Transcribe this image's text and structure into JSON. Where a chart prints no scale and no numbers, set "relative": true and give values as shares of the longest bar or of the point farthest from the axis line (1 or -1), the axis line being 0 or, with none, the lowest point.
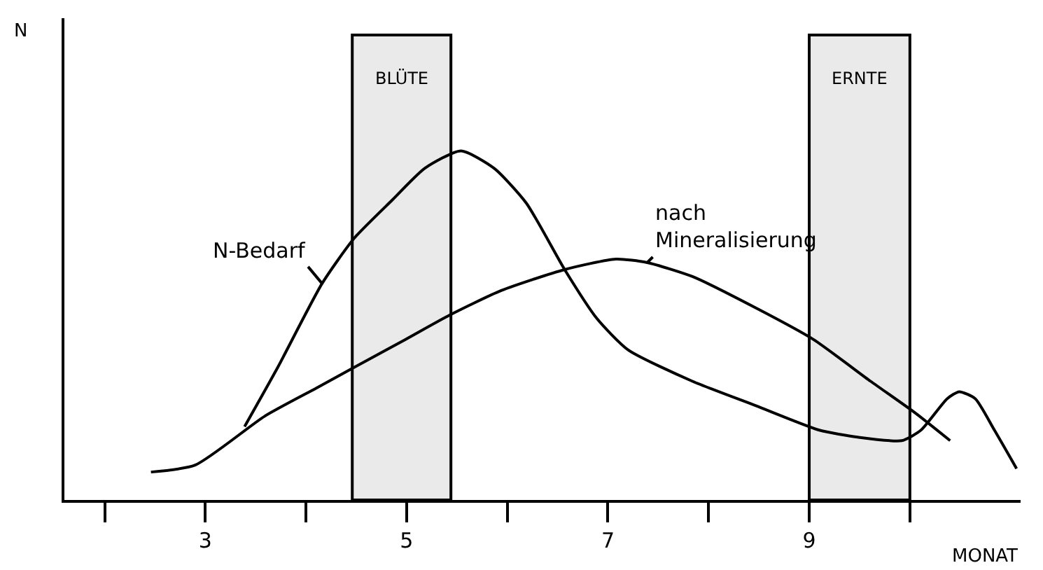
{
  "chart_data": {
    "type": "line",
    "relative": true,
    "xlabel": "MONAT",
    "annotations": [
      "N"
    ],
    "xlim": [
      1.6,
      11.1
    ],
    "xticks": [
      {
        "value": 2,
        "label": null
      },
      3,
      {
        "value": 4,
        "label": null
      },
      5,
      {
        "value": 6,
        "label": null
      },
      7,
      {
        "value": 8,
        "label": null
      },
      9,
      {
        "value": 10,
        "label": null
      }
    ],
    "legend": false,
    "marker": "none",
    "line_style": "solid",
    "series": [
      {
        "name": "N-Bedarf",
        "color": "#000000",
        "x": [
          3.39,
          3.72,
          4.16,
          4.48,
          4.86,
          5.18,
          5.54,
          5.87,
          6.19,
          6.57,
          6.89,
          7.2,
          7.84,
          8.47,
          9.1,
          9.48,
          9.92,
          10.11,
          10.37,
          10.49,
          10.65,
          10.84,
          11.06
        ],
        "values": [
          0.21,
          0.38,
          0.62,
          0.75,
          0.86,
          0.95,
          1.0,
          0.95,
          0.85,
          0.66,
          0.52,
          0.43,
          0.34,
          0.27,
          0.2,
          0.18,
          0.17,
          0.2,
          0.29,
          0.31,
          0.29,
          0.2,
          0.09
        ]
      },
      {
        "name": "nach Mineralisierung",
        "color": "#000000",
        "x": [
          2.46,
          2.9,
          3.59,
          4.1,
          4.48,
          4.99,
          5.43,
          5.94,
          6.57,
          7.08,
          7.39,
          7.84,
          8.47,
          9.04,
          9.61,
          10.05,
          10.4
        ],
        "values": [
          0.08,
          0.1,
          0.24,
          0.32,
          0.38,
          0.46,
          0.53,
          0.6,
          0.66,
          0.69,
          0.68,
          0.64,
          0.55,
          0.46,
          0.34,
          0.25,
          0.17
        ]
      }
    ],
    "bands": [
      {
        "axis": "x",
        "from": 4.46,
        "to": 5.44,
        "label": "BLÜTE",
        "color": "#000000"
      },
      {
        "axis": "x",
        "from": 9.0,
        "to": 10.0,
        "label": "ERNTE",
        "color": "#000000"
      }
    ]
  }
}
